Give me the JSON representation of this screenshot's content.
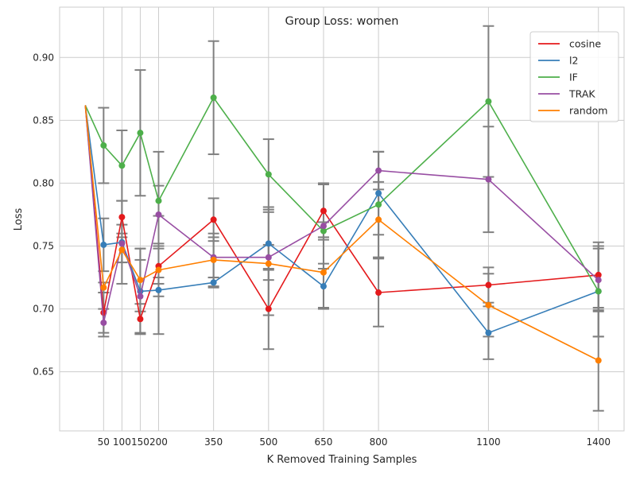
{
  "chart_data": {
    "type": "line",
    "title": "Group Loss: women",
    "xlabel": "K Removed Training Samples",
    "ylabel": "Loss",
    "x_ticks": [
      50,
      100,
      150,
      200,
      350,
      500,
      650,
      800,
      1100,
      1400
    ],
    "x_tick_labels": [
      "50",
      "100",
      "150",
      "200",
      "350",
      "500",
      "650",
      "800",
      "1100",
      "1400"
    ],
    "y_ticks": [
      0.65,
      0.7,
      0.75,
      0.8,
      0.85,
      0.9
    ],
    "y_tick_labels": [
      "0.65",
      "0.70",
      "0.75",
      "0.80",
      "0.85",
      "0.90"
    ],
    "xlim": [
      -70,
      1470
    ],
    "ylim": [
      0.603,
      0.94
    ],
    "grid": true,
    "legend_position": "top-right",
    "error_bar_color": "#808080",
    "start_point": {
      "x": 0,
      "y": 0.862
    },
    "series": [
      {
        "name": "cosine",
        "color": "#e41a1c",
        "x": [
          50,
          100,
          150,
          200,
          350,
          500,
          650,
          800,
          1100,
          1400
        ],
        "y": [
          0.697,
          0.773,
          0.692,
          0.734,
          0.771,
          0.7,
          0.778,
          0.713,
          0.719,
          0.727
        ],
        "err": [
          0.016,
          0.013,
          0.012,
          0.014,
          0.017,
          0.032,
          0.021,
          0.027,
          0.014,
          0.026
        ]
      },
      {
        "name": "l2",
        "color": "#377eb8",
        "x": [
          50,
          100,
          150,
          200,
          350,
          500,
          650,
          800,
          1100,
          1400
        ],
        "y": [
          0.751,
          0.753,
          0.714,
          0.715,
          0.721,
          0.752,
          0.718,
          0.792,
          0.681,
          0.714
        ],
        "err": [
          0.021,
          0.033,
          0.034,
          0.035,
          0.004,
          0.029,
          0.018,
          0.033,
          0.021,
          0.036
        ]
      },
      {
        "name": "IF",
        "color": "#4daf4a",
        "x": [
          50,
          100,
          150,
          200,
          350,
          500,
          650,
          800,
          1100,
          1400
        ],
        "y": [
          0.83,
          0.814,
          0.84,
          0.786,
          0.868,
          0.807,
          0.762,
          0.783,
          0.865,
          0.714
        ],
        "err": [
          0.03,
          0.028,
          0.05,
          0.012,
          0.045,
          0.028,
          0.007,
          0.042,
          0.06,
          0.036
        ]
      },
      {
        "name": "TRAK",
        "color": "#984ea3",
        "x": [
          50,
          100,
          150,
          200,
          350,
          500,
          650,
          800,
          1100,
          1400
        ],
        "y": [
          0.689,
          0.752,
          0.71,
          0.775,
          0.741,
          0.741,
          0.766,
          0.81,
          0.803,
          0.723
        ],
        "err": [
          0.011,
          0.015,
          0.029,
          0.05,
          0.016,
          0.01,
          0.034,
          0.015,
          0.042,
          0.025
        ]
      },
      {
        "name": "random",
        "color": "#ff7f00",
        "x": [
          50,
          100,
          150,
          200,
          350,
          500,
          650,
          800,
          1100,
          1400
        ],
        "y": [
          0.717,
          0.747,
          0.723,
          0.731,
          0.739,
          0.736,
          0.729,
          0.771,
          0.703,
          0.659
        ],
        "err": [
          0.004,
          0.01,
          0.025,
          0.021,
          0.021,
          0.041,
          0.028,
          0.03,
          0.025,
          0.04
        ]
      }
    ]
  }
}
